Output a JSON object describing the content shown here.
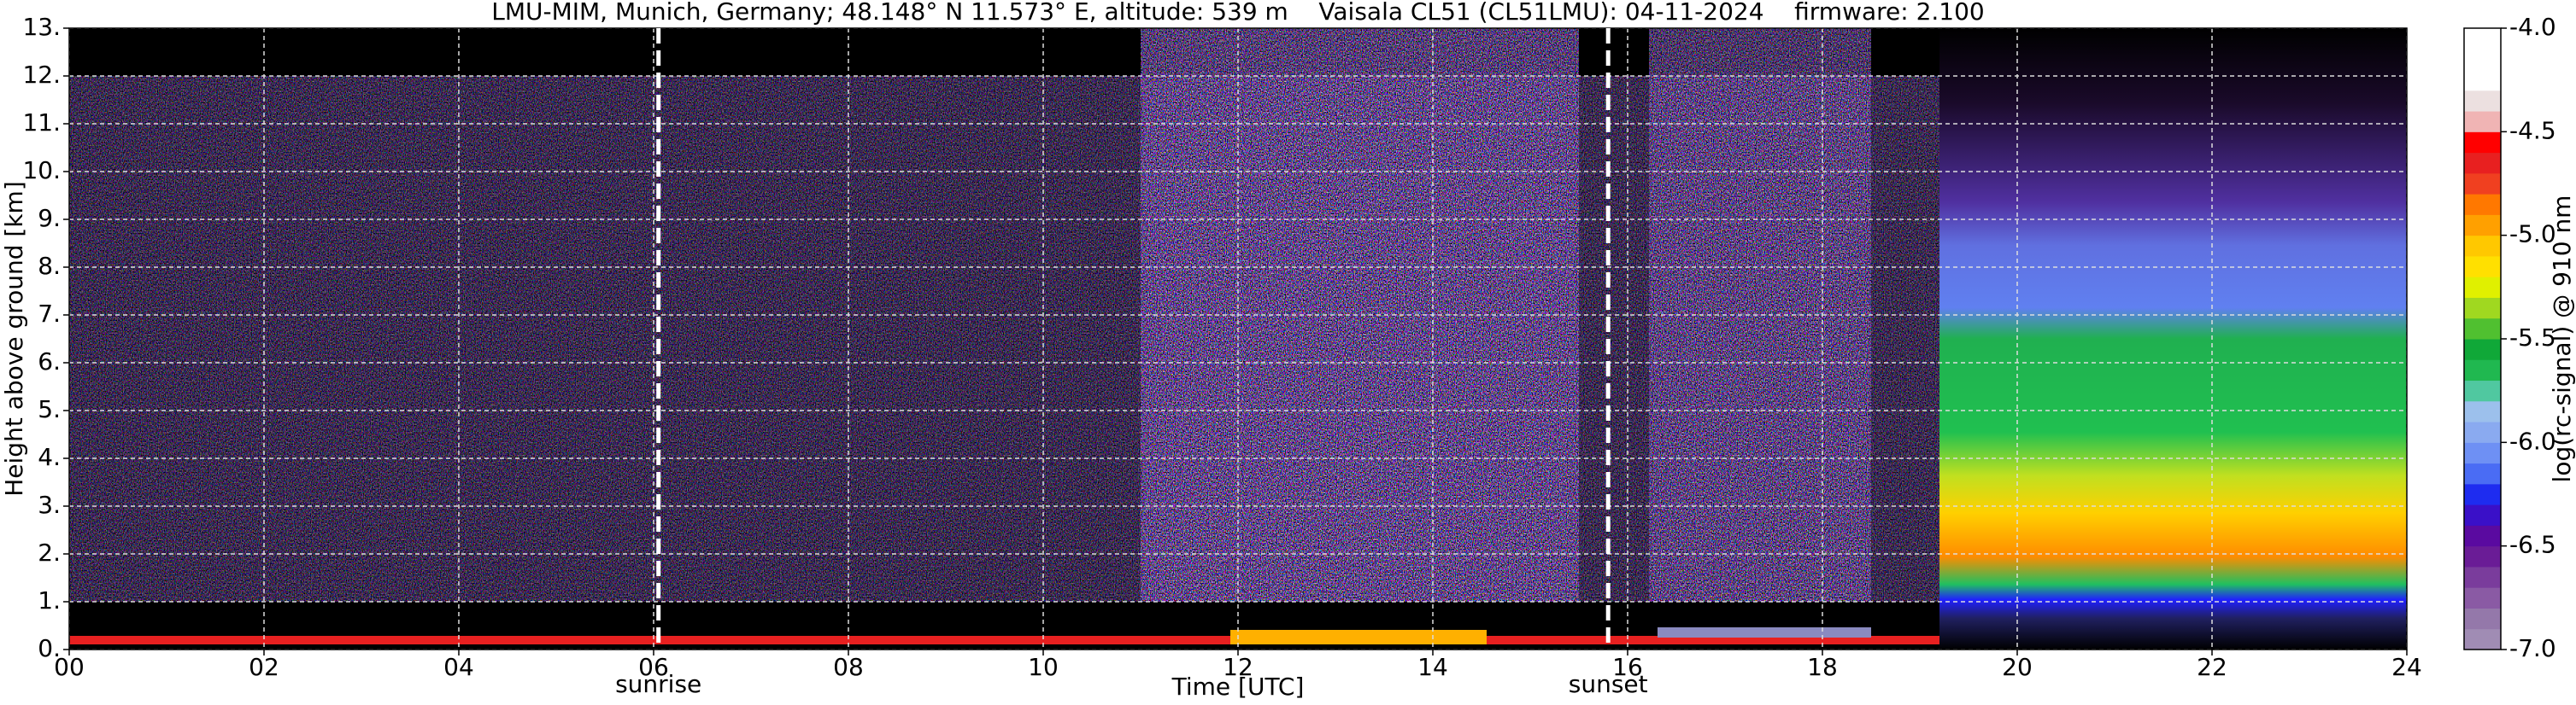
{
  "chart_data": {
    "type": "heatmap",
    "title": "LMU-MIM, Munich, Germany; 48.148° N 11.573° E, altitude: 539 m    Vaisala CL51 (CL51LMU): 04-11-2024    firmware: 2.100",
    "x_label": "Time [UTC]",
    "y_label": "Height above ground [km]",
    "xlim": [
      0,
      24
    ],
    "xticks": [
      {
        "value": 0,
        "label": "00"
      },
      {
        "value": 2,
        "label": "02"
      },
      {
        "value": 4,
        "label": "04"
      },
      {
        "value": 6,
        "label": "06"
      },
      {
        "value": 8,
        "label": "08"
      },
      10,
      12,
      14,
      16,
      18,
      20,
      22,
      24
    ],
    "ylim": [
      0,
      13
    ],
    "yticks": [
      {
        "value": 0,
        "label": "0."
      },
      {
        "value": 1,
        "label": "1."
      },
      {
        "value": 2,
        "label": "2."
      },
      {
        "value": 3,
        "label": "3."
      },
      {
        "value": 4,
        "label": "4."
      },
      {
        "value": 5,
        "label": "5."
      },
      {
        "value": 6,
        "label": "6."
      },
      {
        "value": 7,
        "label": "7."
      },
      {
        "value": 8,
        "label": "8."
      },
      {
        "value": 9,
        "label": "9."
      },
      {
        "value": 10,
        "label": "10."
      },
      {
        "value": 11,
        "label": "11."
      },
      {
        "value": 12,
        "label": "12."
      },
      {
        "value": 13,
        "label": "13."
      }
    ],
    "grid": true,
    "annotations": [
      {
        "label": "sunrise",
        "x": 6.05
      },
      {
        "label": "sunset",
        "x": 15.8
      }
    ],
    "colorbar": {
      "label": "log(rc-signal) @ 910 nm",
      "clim": [
        -7,
        -4
      ],
      "ticks": [
        {
          "value": -7,
          "label": "-7.0"
        },
        -6.5,
        {
          "value": -6,
          "label": "-6.0"
        },
        -5.5,
        {
          "value": -5,
          "label": "-5.0"
        },
        -4.5,
        {
          "value": -4,
          "label": "-4.0"
        }
      ],
      "colors": [
        "#a08cb4",
        "#9478aa",
        "#8a5aa4",
        "#7a3c9c",
        "#6a1c96",
        "#5a0aa0",
        "#3a10c8",
        "#1e2cf0",
        "#4a6cf4",
        "#6e90f4",
        "#8aaaf0",
        "#9cc0ec",
        "#50c8a0",
        "#20b850",
        "#10a838",
        "#50c030",
        "#a0d820",
        "#e0f000",
        "#ffe000",
        "#ffc800",
        "#ffa000",
        "#ff7800",
        "#f04020",
        "#e82020",
        "#ff0000",
        "#f0b4b4",
        "#ece0e0",
        "#ffffff",
        "#ffffff",
        "#ffffff"
      ]
    }
  }
}
